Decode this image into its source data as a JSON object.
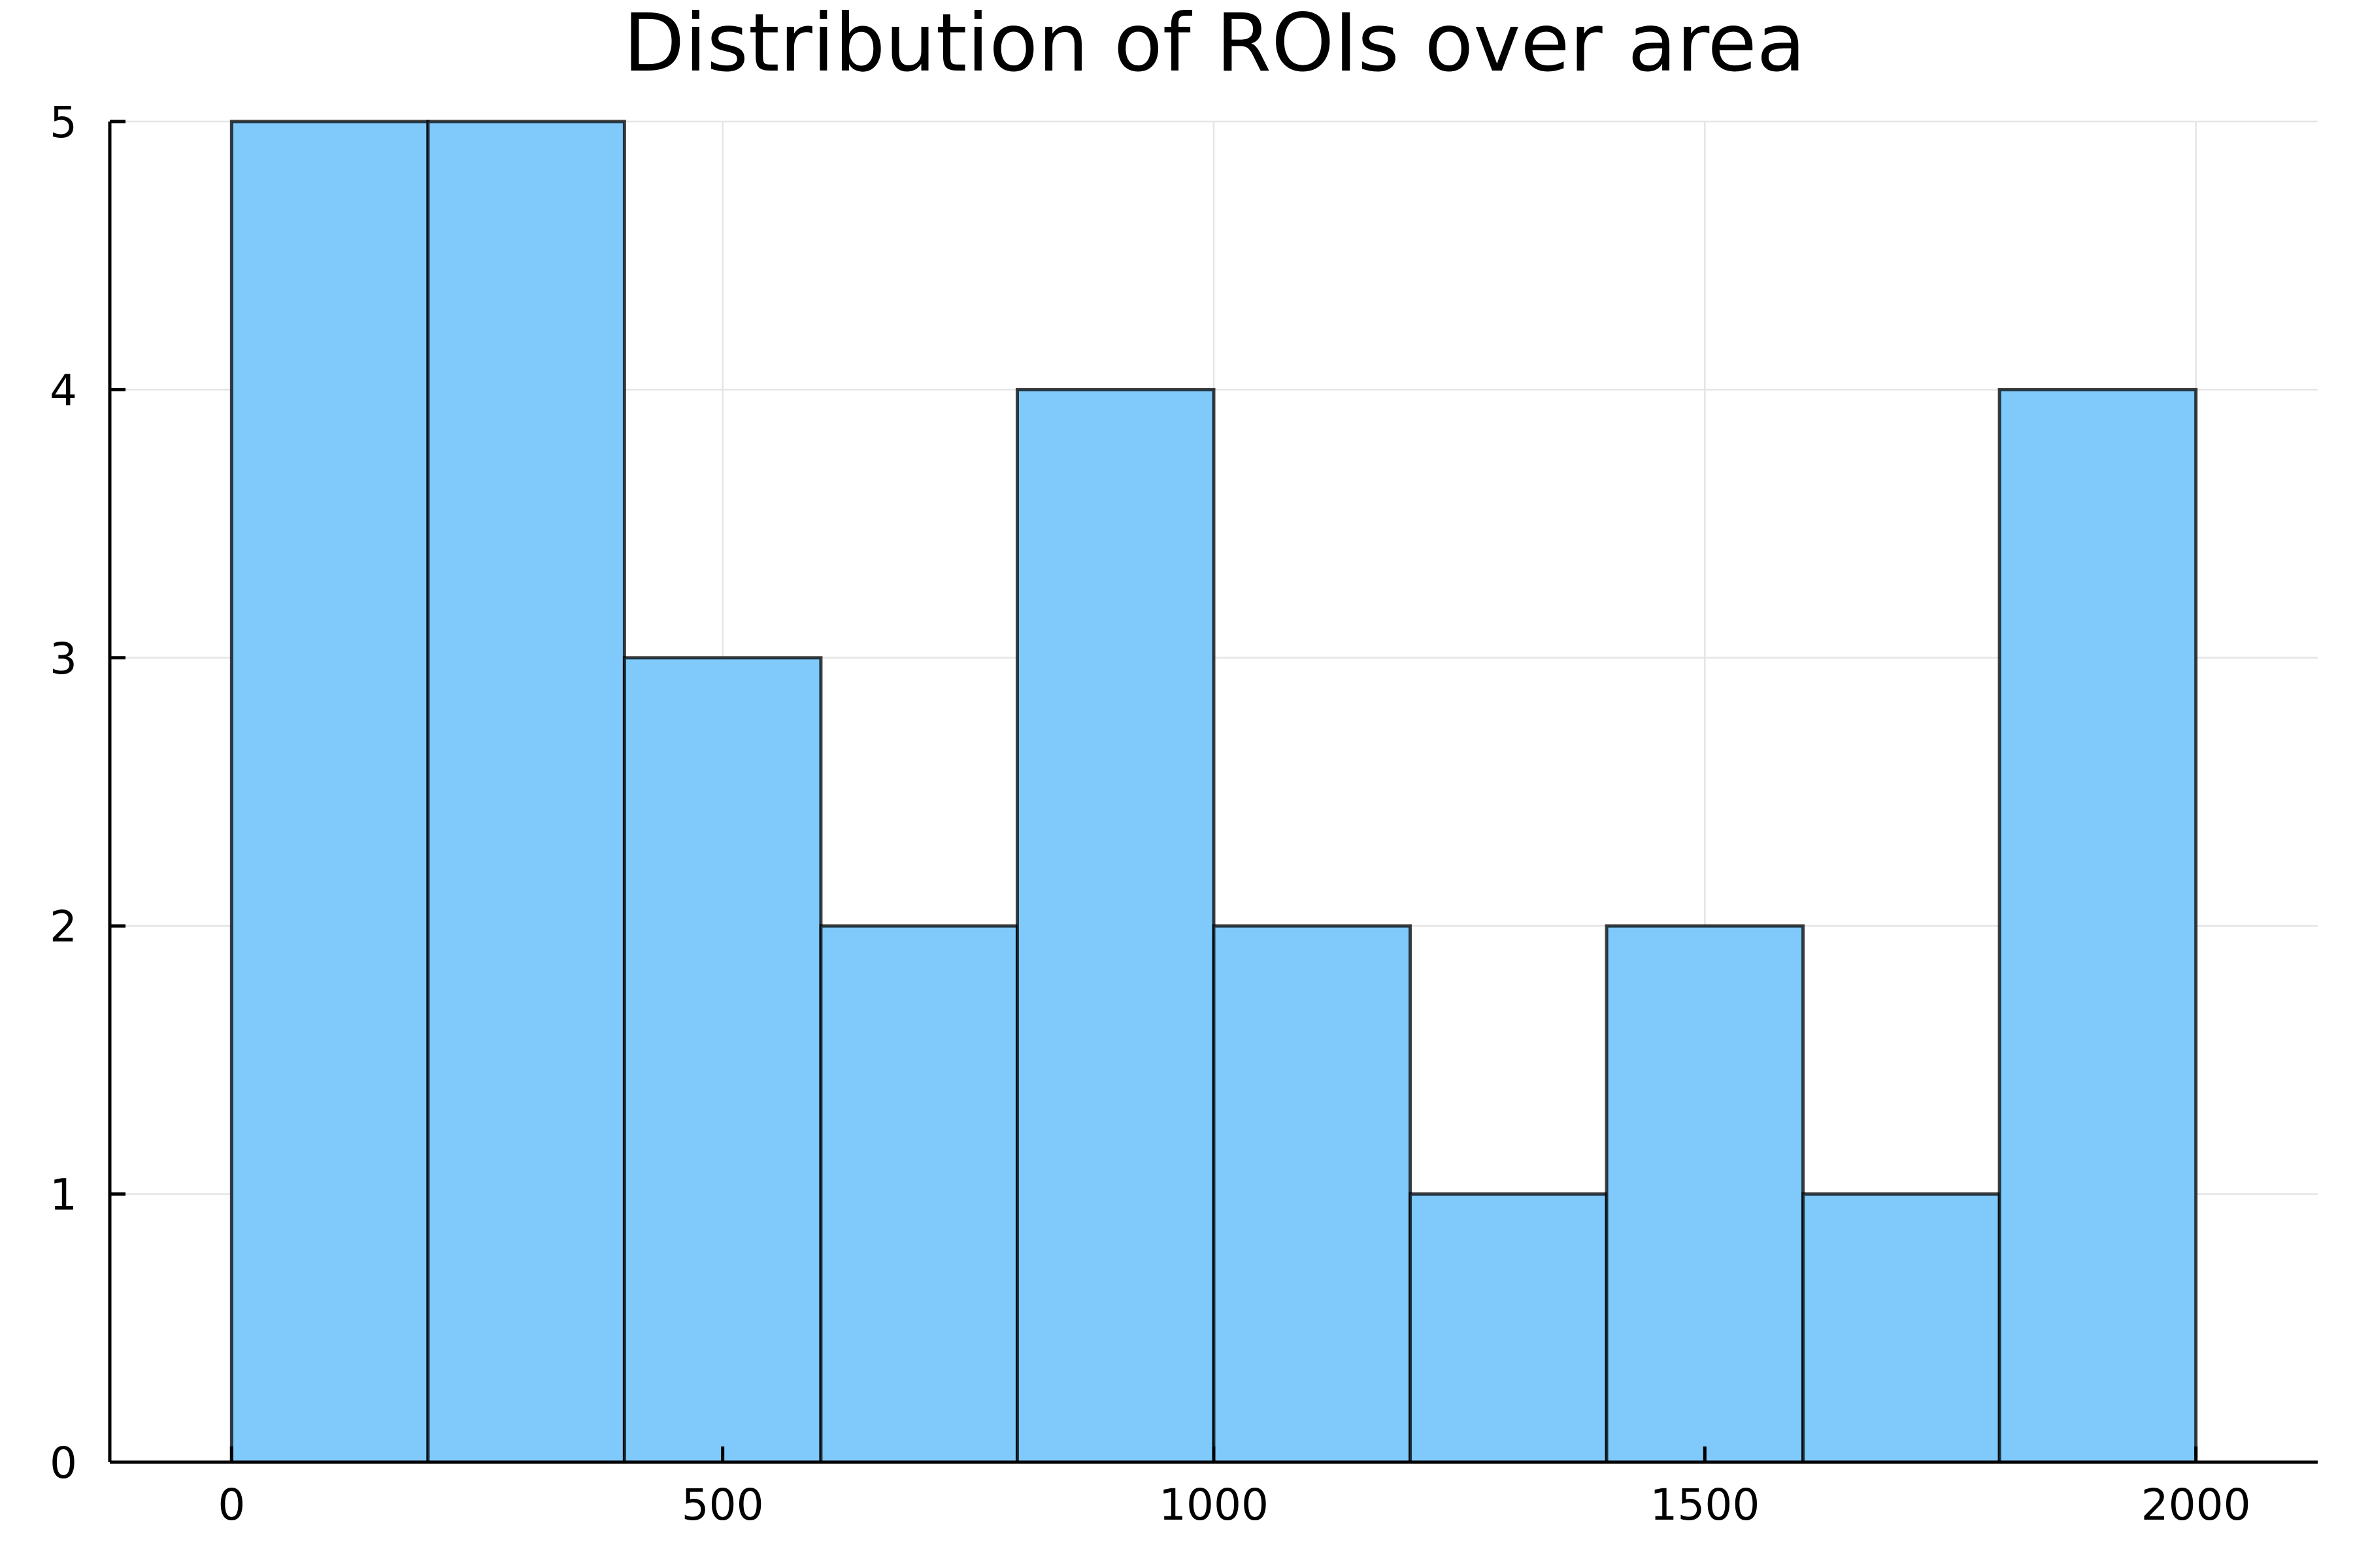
{
  "chart_data": {
    "type": "bar",
    "title": "Distribution of ROIs over  area",
    "xlabel": "",
    "ylabel": "",
    "bins": [
      {
        "x0": 0,
        "x1": 200,
        "count": 5
      },
      {
        "x0": 200,
        "x1": 400,
        "count": 5
      },
      {
        "x0": 400,
        "x1": 600,
        "count": 3
      },
      {
        "x0": 600,
        "x1": 800,
        "count": 2
      },
      {
        "x0": 800,
        "x1": 1000,
        "count": 4
      },
      {
        "x0": 1000,
        "x1": 1200,
        "count": 2
      },
      {
        "x0": 1200,
        "x1": 1400,
        "count": 1
      },
      {
        "x0": 1400,
        "x1": 1600,
        "count": 2
      },
      {
        "x0": 1600,
        "x1": 1800,
        "count": 1
      },
      {
        "x0": 1800,
        "x1": 2000,
        "count": 4
      }
    ],
    "xlim": [
      -124,
      2124
    ],
    "ylim": [
      0,
      5
    ],
    "xticks": [
      0,
      500,
      1000,
      1500,
      2000
    ],
    "yticks": [
      0,
      1,
      2,
      3,
      4,
      5
    ],
    "grid": true,
    "legend": "none",
    "bar_color": "#7fc9fb"
  }
}
